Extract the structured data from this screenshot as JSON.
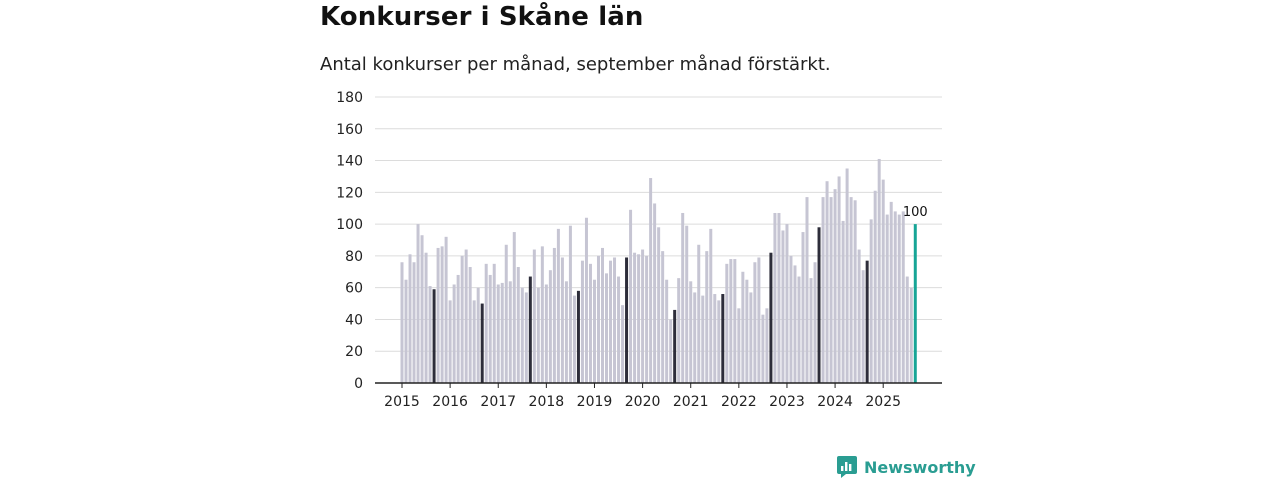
{
  "header": {
    "title": "Konkurser i Skåne län",
    "subtitle": "Antal konkurser per månad, september månad förstärkt."
  },
  "brand": {
    "name": "Newsworthy"
  },
  "colors": {
    "bar": "#c6c5d3",
    "highlight": "#2d2d3a",
    "current": "#17a596",
    "grid": "#dcdcdc",
    "axis": "#222222",
    "brand": "#2a9d92"
  },
  "chart_data": {
    "type": "bar",
    "title": "Konkurser i Skåne län",
    "subtitle": "Antal konkurser per månad, september månad förstärkt.",
    "xlabel": "",
    "ylabel": "",
    "ylim": [
      0,
      180
    ],
    "yticks": [
      "0",
      "20",
      "40",
      "60",
      "80",
      "100",
      "120",
      "140",
      "160",
      "180"
    ],
    "grid": true,
    "start": "2015-01",
    "end": "2025-09",
    "highlight_month": "september",
    "xticks": [
      {
        "label": "2015",
        "index": 0
      },
      {
        "label": "2016",
        "index": 12
      },
      {
        "label": "2017",
        "index": 24
      },
      {
        "label": "2018",
        "index": 36
      },
      {
        "label": "2019",
        "index": 48
      },
      {
        "label": "2020",
        "index": 60
      },
      {
        "label": "2021",
        "index": 72
      },
      {
        "label": "2022",
        "index": 84
      },
      {
        "label": "2023",
        "index": 96
      },
      {
        "label": "2024",
        "index": 108
      },
      {
        "label": "2025",
        "index": 120
      }
    ],
    "annotation": {
      "label": "100",
      "index": 128,
      "value": 100
    },
    "values": [
      76,
      65,
      81,
      76,
      100,
      93,
      82,
      61,
      59,
      85,
      86,
      92,
      52,
      62,
      68,
      80,
      84,
      73,
      52,
      60,
      50,
      75,
      68,
      75,
      62,
      63,
      87,
      64,
      95,
      73,
      60,
      57,
      67,
      84,
      60,
      86,
      62,
      71,
      85,
      97,
      79,
      64,
      99,
      55,
      58,
      77,
      104,
      75,
      65,
      80,
      85,
      69,
      77,
      79,
      67,
      49,
      79,
      109,
      82,
      81,
      84,
      80,
      129,
      113,
      98,
      83,
      65,
      40,
      46,
      66,
      107,
      99,
      64,
      57,
      87,
      55,
      83,
      97,
      56,
      52,
      56,
      75,
      78,
      78,
      47,
      70,
      65,
      57,
      76,
      79,
      43,
      47,
      82,
      107,
      107,
      96,
      100,
      80,
      74,
      67,
      95,
      117,
      66,
      76,
      98,
      117,
      127,
      117,
      122,
      130,
      102,
      135,
      117,
      115,
      84,
      71,
      77,
      103,
      121,
      141,
      128,
      106,
      114,
      108,
      106,
      108,
      67,
      60,
      100
    ]
  }
}
